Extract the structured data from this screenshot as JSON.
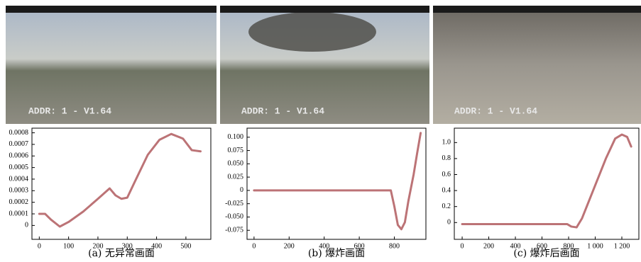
{
  "photos": [
    {
      "overlay": "ADDR: 1 - V1.64"
    },
    {
      "overlay": "ADDR: 1 - V1.64"
    },
    {
      "overlay": "ADDR: 1 - V1.64"
    }
  ],
  "chart_data": [
    {
      "type": "line",
      "title": "(a) 无异常画面",
      "color": "#b05a5e",
      "x": [
        0,
        20,
        40,
        70,
        100,
        150,
        200,
        240,
        260,
        280,
        300,
        330,
        370,
        410,
        450,
        490,
        520,
        550
      ],
      "values": [
        0.0001,
        0.0001,
        5e-05,
        -1e-05,
        3e-05,
        0.00012,
        0.00023,
        0.00032,
        0.00026,
        0.00023,
        0.00024,
        0.0004,
        0.00061,
        0.00074,
        0.00079,
        0.00075,
        0.00065,
        0.00064
      ],
      "xlim": [
        -25,
        585
      ],
      "ylim": [
        -0.00012,
        0.00084
      ],
      "xticks": [
        0,
        100,
        200,
        300,
        400,
        500
      ],
      "yticks": [
        0,
        0.0001,
        0.0002,
        0.0003,
        0.0004,
        0.0005,
        0.0006,
        0.0007,
        0.0008
      ]
    },
    {
      "type": "line",
      "title": "(b) 爆炸画面",
      "color": "#b05a5e",
      "x": [
        0,
        780,
        800,
        820,
        840,
        860,
        880,
        910,
        930,
        950
      ],
      "values": [
        0,
        0,
        -0.03,
        -0.065,
        -0.073,
        -0.06,
        -0.02,
        0.03,
        0.07,
        0.108
      ],
      "xlim": [
        -40,
        980
      ],
      "ylim": [
        -0.092,
        0.117
      ],
      "xticks": [
        0,
        200,
        400,
        600,
        800
      ],
      "yticks": [
        {
          "value": -0.075,
          "label": "-0.075"
        },
        {
          "value": -0.05,
          "label": "-0.050"
        },
        -0.025,
        0,
        0.025,
        {
          "value": 0.05,
          "label": "0.050"
        },
        0.075,
        {
          "value": 0.1,
          "label": "0.100"
        }
      ]
    },
    {
      "type": "line",
      "title": "(c) 爆炸后画面",
      "color": "#b05a5e",
      "x": [
        0,
        790,
        820,
        860,
        900,
        960,
        1020,
        1080,
        1150,
        1200,
        1240,
        1270
      ],
      "values": [
        -0.02,
        -0.02,
        -0.05,
        -0.06,
        0.05,
        0.3,
        0.55,
        0.8,
        1.05,
        1.1,
        1.07,
        0.95
      ],
      "xlim": [
        -59,
        1328
      ],
      "ylim": [
        -0.21,
        1.18
      ],
      "xticks": [
        0,
        200,
        400,
        600,
        800,
        {
          "value": 1000,
          "label": "1 000"
        },
        {
          "value": 1200,
          "label": "1 200"
        }
      ],
      "yticks": [
        0,
        0.2,
        0.4,
        0.6,
        0.8,
        {
          "value": 1,
          "label": "1.0"
        }
      ]
    }
  ]
}
